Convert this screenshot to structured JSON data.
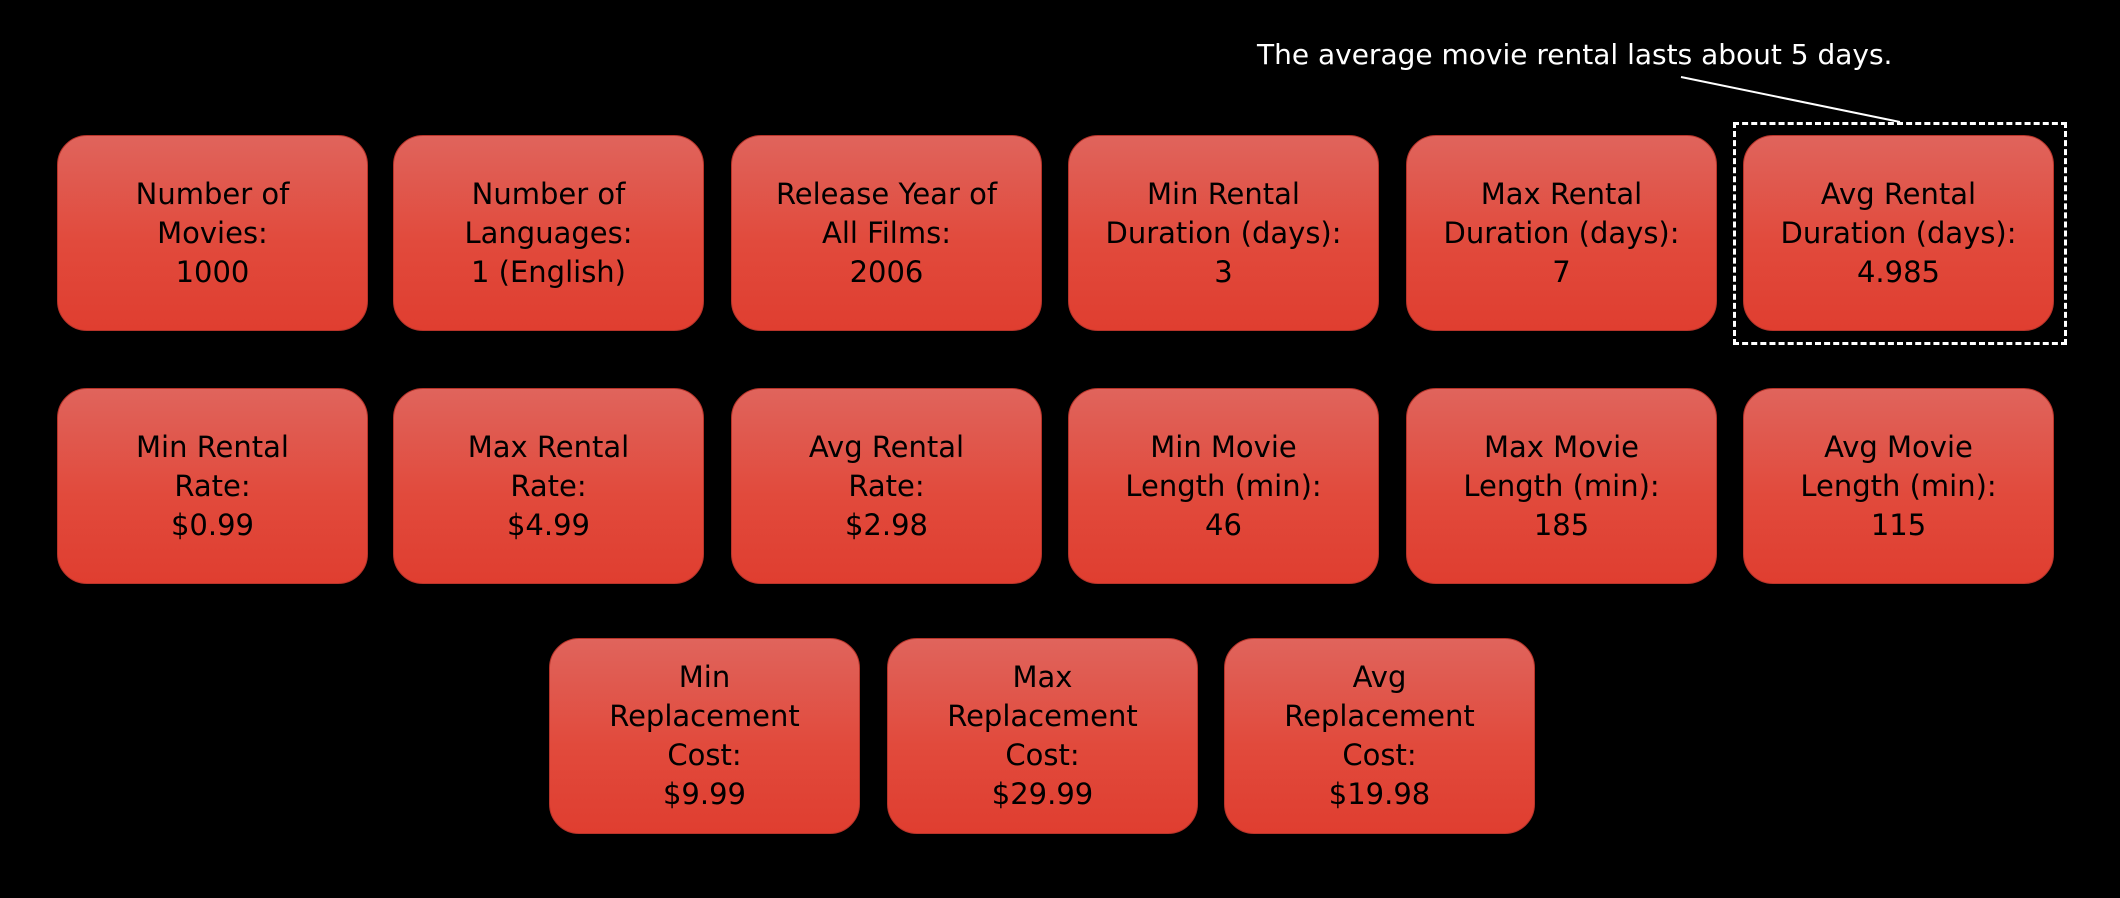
{
  "annotation": "The average movie rental lasts about 5 days.",
  "cards": [
    {
      "label": "Number of\nMovies:",
      "value": "1000"
    },
    {
      "label": "Number of\nLanguages:",
      "value": "1 (English)"
    },
    {
      "label": "Release Year of\nAll Films:",
      "value": "2006"
    },
    {
      "label": "Min Rental\nDuration (days):",
      "value": "3"
    },
    {
      "label": "Max Rental\nDuration (days):",
      "value": "7"
    },
    {
      "label": "Avg Rental\nDuration (days):",
      "value": "4.985"
    },
    {
      "label": "Min Rental\nRate:",
      "value": "$0.99"
    },
    {
      "label": "Max Rental\nRate:",
      "value": "$4.99"
    },
    {
      "label": "Avg Rental\nRate:",
      "value": "$2.98"
    },
    {
      "label": "Min Movie\nLength (min):",
      "value": "46"
    },
    {
      "label": "Max Movie\nLength (min):",
      "value": "185"
    },
    {
      "label": "Avg Movie\nLength (min):",
      "value": "115"
    },
    {
      "label": "Min\nReplacement\nCost:",
      "value": "$9.99"
    },
    {
      "label": "Max\nReplacement\nCost:",
      "value": "$29.99"
    },
    {
      "label": "Avg\nReplacement\nCost:",
      "value": "$19.98"
    }
  ]
}
